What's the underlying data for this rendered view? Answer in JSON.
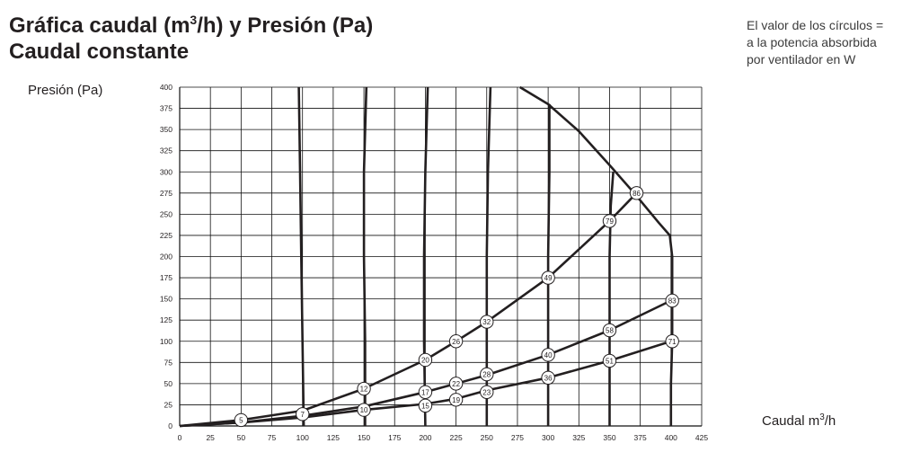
{
  "header": {
    "title_prefix": "Gráfica caudal (m",
    "title_sup": "3",
    "title_suffix": "/h) y Presión (Pa)",
    "subtitle": "Caudal constante"
  },
  "note": {
    "line1": "El valor de los círculos =",
    "line2": "a la potencia absorbida",
    "line3": "por ventilador en W"
  },
  "chart_data": {
    "type": "line",
    "ylabel": "Presión (Pa)",
    "xlabel_prefix": "Caudal m",
    "xlabel_sup": "3",
    "xlabel_suffix": "/h",
    "xlim": [
      0,
      425
    ],
    "ylim": [
      0,
      400
    ],
    "xticks": [
      0,
      25,
      50,
      75,
      100,
      125,
      150,
      175,
      200,
      225,
      250,
      275,
      300,
      325,
      350,
      375,
      400,
      425
    ],
    "yticks": [
      0,
      25,
      50,
      75,
      100,
      125,
      150,
      175,
      200,
      225,
      250,
      275,
      300,
      325,
      350,
      375,
      400
    ],
    "grid": true,
    "constant_flow_lines": [
      {
        "x": 100,
        "points": [
          [
            101,
            0
          ],
          [
            100,
            100
          ],
          [
            99,
            200
          ],
          [
            98,
            300
          ],
          [
            97,
            400
          ]
        ]
      },
      {
        "x": 150,
        "points": [
          [
            151,
            0
          ],
          [
            151,
            100
          ],
          [
            150,
            200
          ],
          [
            150,
            300
          ],
          [
            152,
            400
          ]
        ]
      },
      {
        "x": 200,
        "points": [
          [
            200,
            0
          ],
          [
            199,
            100
          ],
          [
            199,
            200
          ],
          [
            200,
            300
          ],
          [
            202,
            400
          ]
        ]
      },
      {
        "x": 250,
        "points": [
          [
            250,
            0
          ],
          [
            250,
            100
          ],
          [
            250,
            200
          ],
          [
            251,
            300
          ],
          [
            253,
            400
          ]
        ]
      },
      {
        "x": 300,
        "points": [
          [
            300,
            0
          ],
          [
            300,
            100
          ],
          [
            300,
            200
          ],
          [
            301,
            300
          ],
          [
            301,
            380
          ]
        ]
      },
      {
        "x": 350,
        "points": [
          [
            350,
            0
          ],
          [
            350,
            100
          ],
          [
            350,
            200
          ],
          [
            351,
            260
          ],
          [
            353,
            300
          ]
        ]
      }
    ],
    "max_curve": [
      [
        277,
        400
      ],
      [
        300,
        380
      ],
      [
        325,
        348
      ],
      [
        350,
        308
      ],
      [
        370,
        275
      ],
      [
        390,
        240
      ],
      [
        399,
        225
      ],
      [
        401,
        200
      ],
      [
        401,
        150
      ],
      [
        401,
        100
      ],
      [
        400,
        50
      ],
      [
        400,
        0
      ]
    ],
    "system_curves": [
      {
        "points": [
          [
            0,
            0
          ],
          [
            50,
            7
          ],
          [
            100,
            18
          ],
          [
            150,
            44
          ],
          [
            200,
            78
          ],
          [
            225,
            100
          ],
          [
            250,
            123
          ],
          [
            300,
            175
          ],
          [
            350,
            242
          ],
          [
            372,
            275
          ]
        ]
      },
      {
        "points": [
          [
            0,
            0
          ],
          [
            50,
            4
          ],
          [
            100,
            12
          ],
          [
            150,
            23
          ],
          [
            200,
            40
          ],
          [
            225,
            50
          ],
          [
            250,
            60
          ],
          [
            300,
            84
          ],
          [
            350,
            113
          ],
          [
            400,
            148
          ]
        ]
      },
      {
        "points": [
          [
            0,
            0
          ],
          [
            50,
            4
          ],
          [
            100,
            10
          ],
          [
            150,
            19
          ],
          [
            200,
            26
          ],
          [
            225,
            32
          ],
          [
            250,
            42
          ],
          [
            300,
            57
          ],
          [
            350,
            77
          ],
          [
            400,
            100
          ]
        ]
      }
    ],
    "power_points": [
      {
        "x": 50,
        "y": 7,
        "label": "5"
      },
      {
        "x": 100,
        "y": 14,
        "label": "7"
      },
      {
        "x": 150,
        "y": 44,
        "label": "12"
      },
      {
        "x": 150,
        "y": 19,
        "label": "10"
      },
      {
        "x": 200,
        "y": 78,
        "label": "20"
      },
      {
        "x": 200,
        "y": 40,
        "label": "17"
      },
      {
        "x": 200,
        "y": 24,
        "label": "15"
      },
      {
        "x": 225,
        "y": 100,
        "label": "26"
      },
      {
        "x": 225,
        "y": 50,
        "label": "22"
      },
      {
        "x": 225,
        "y": 31,
        "label": "19"
      },
      {
        "x": 250,
        "y": 123,
        "label": "32"
      },
      {
        "x": 250,
        "y": 61,
        "label": "28"
      },
      {
        "x": 250,
        "y": 40,
        "label": "23"
      },
      {
        "x": 300,
        "y": 175,
        "label": "49"
      },
      {
        "x": 300,
        "y": 84,
        "label": "40"
      },
      {
        "x": 300,
        "y": 57,
        "label": "36"
      },
      {
        "x": 350,
        "y": 242,
        "label": "79"
      },
      {
        "x": 350,
        "y": 113,
        "label": "58"
      },
      {
        "x": 350,
        "y": 77,
        "label": "51"
      },
      {
        "x": 372,
        "y": 275,
        "label": "86"
      },
      {
        "x": 401,
        "y": 148,
        "label": "83"
      },
      {
        "x": 401,
        "y": 100,
        "label": "71"
      }
    ],
    "colors": {
      "curve": "#231f20",
      "grid": "#111111",
      "marker_fill": "#ffffff",
      "text": "#231f20"
    }
  }
}
